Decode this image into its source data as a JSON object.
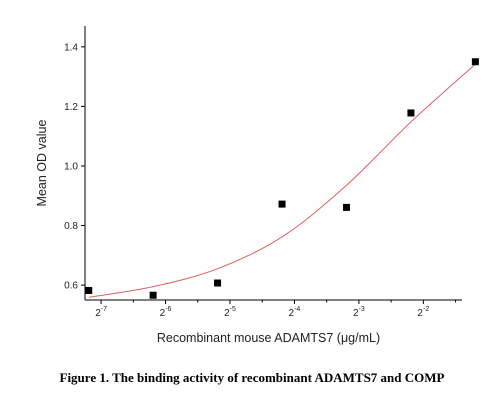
{
  "chart_data": {
    "type": "scatter",
    "xlabel": "Recombinant mouse ADAMTS7 (μg/mL)",
    "ylabel": "Mean OD value",
    "xscale": "log2",
    "xlim_log2": [
      -7.25,
      -1.4
    ],
    "ylim": [
      0.55,
      1.47
    ],
    "xticks": [
      {
        "exp": -7,
        "base": "2",
        "sup": "-7"
      },
      {
        "exp": -6,
        "base": "2",
        "sup": "-6"
      },
      {
        "exp": -5,
        "base": "2",
        "sup": "-5"
      },
      {
        "exp": -4,
        "base": "2",
        "sup": "-4"
      },
      {
        "exp": -3,
        "base": "2",
        "sup": "-3"
      },
      {
        "exp": -2,
        "base": "2",
        "sup": "-2"
      }
    ],
    "yticks": [
      0.6,
      0.8,
      1.0,
      1.2,
      1.4
    ],
    "points": [
      {
        "x": 0.00684,
        "y": 0.582
      },
      {
        "x": 0.01367,
        "y": 0.566
      },
      {
        "x": 0.02734,
        "y": 0.607
      },
      {
        "x": 0.05469,
        "y": 0.872
      },
      {
        "x": 0.10938,
        "y": 0.861
      },
      {
        "x": 0.21875,
        "y": 1.178
      },
      {
        "x": 0.4375,
        "y": 1.35
      }
    ],
    "fit_curve": {
      "color": "#e06060",
      "points": [
        {
          "x": 0.00684,
          "y": 0.559
        },
        {
          "x": 0.01367,
          "y": 0.595
        },
        {
          "x": 0.02734,
          "y": 0.655
        },
        {
          "x": 0.05469,
          "y": 0.762
        },
        {
          "x": 0.10938,
          "y": 0.935
        },
        {
          "x": 0.21875,
          "y": 1.148
        },
        {
          "x": 0.4375,
          "y": 1.342
        }
      ]
    },
    "grid": false,
    "marker_color": "#000000"
  },
  "caption": "Figure 1. The binding activity of recombinant ADAMTS7 and COMP"
}
